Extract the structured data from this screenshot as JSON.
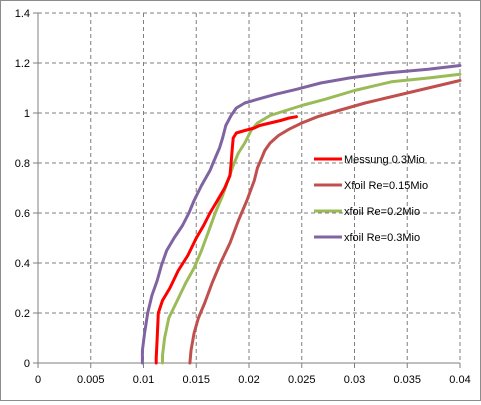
{
  "chart_data": {
    "type": "line",
    "title": "",
    "xlabel": "",
    "ylabel": "",
    "xlim": [
      0,
      0.04
    ],
    "ylim": [
      0,
      1.4
    ],
    "x_ticks": [
      0,
      0.005,
      0.01,
      0.015,
      0.02,
      0.025,
      0.03,
      0.035,
      0.04
    ],
    "x_tick_labels": [
      "0",
      "0.005",
      "0.01",
      "0.015",
      "0.02",
      "0.025",
      "0.03",
      "0.035",
      "0.04"
    ],
    "y_ticks": [
      0,
      0.2,
      0.4,
      0.6,
      0.8,
      1,
      1.2,
      1.4
    ],
    "y_tick_labels": [
      "0",
      "0.2",
      "0.4",
      "0.6",
      "0.8",
      "1",
      "1.2",
      "1.4"
    ],
    "grid": "dashed",
    "legend_position": "right",
    "series": [
      {
        "name": "Messung 0.3Mio",
        "color": "#ff0000",
        "points": [
          [
            0.0112,
            0
          ],
          [
            0.0112,
            0.02
          ],
          [
            0.0113,
            0.1
          ],
          [
            0.0114,
            0.2
          ],
          [
            0.0118,
            0.25
          ],
          [
            0.0125,
            0.3
          ],
          [
            0.0133,
            0.37
          ],
          [
            0.0142,
            0.43
          ],
          [
            0.015,
            0.5
          ],
          [
            0.0157,
            0.55
          ],
          [
            0.0163,
            0.6
          ],
          [
            0.017,
            0.65
          ],
          [
            0.0177,
            0.7
          ],
          [
            0.0182,
            0.75
          ],
          [
            0.0183,
            0.8
          ],
          [
            0.0184,
            0.85
          ],
          [
            0.0185,
            0.9
          ],
          [
            0.0188,
            0.92
          ],
          [
            0.0196,
            0.93
          ],
          [
            0.0205,
            0.94
          ],
          [
            0.021,
            0.95
          ],
          [
            0.022,
            0.96
          ],
          [
            0.023,
            0.97
          ],
          [
            0.0238,
            0.98
          ],
          [
            0.0245,
            0.985
          ]
        ]
      },
      {
        "name": "Xfoil Re=0.15Mio",
        "color": "#c0504d",
        "points": [
          [
            0.0144,
            0
          ],
          [
            0.0145,
            0.05
          ],
          [
            0.0148,
            0.12
          ],
          [
            0.0152,
            0.18
          ],
          [
            0.0158,
            0.24
          ],
          [
            0.0165,
            0.32
          ],
          [
            0.0173,
            0.4
          ],
          [
            0.0182,
            0.48
          ],
          [
            0.019,
            0.57
          ],
          [
            0.0198,
            0.65
          ],
          [
            0.0205,
            0.73
          ],
          [
            0.0208,
            0.78
          ],
          [
            0.0212,
            0.82
          ],
          [
            0.0215,
            0.85
          ],
          [
            0.022,
            0.88
          ],
          [
            0.0228,
            0.91
          ],
          [
            0.0238,
            0.935
          ],
          [
            0.025,
            0.96
          ],
          [
            0.0265,
            0.985
          ],
          [
            0.0285,
            1.01
          ],
          [
            0.031,
            1.04
          ],
          [
            0.034,
            1.07
          ],
          [
            0.037,
            1.1
          ],
          [
            0.04,
            1.13
          ]
        ]
      },
      {
        "name": "xfoil Re=0.2Mio",
        "color": "#9bbb59",
        "points": [
          [
            0.0118,
            0
          ],
          [
            0.0118,
            0.03
          ],
          [
            0.012,
            0.1
          ],
          [
            0.0124,
            0.18
          ],
          [
            0.0132,
            0.25
          ],
          [
            0.014,
            0.32
          ],
          [
            0.0148,
            0.38
          ],
          [
            0.0155,
            0.45
          ],
          [
            0.0162,
            0.53
          ],
          [
            0.0168,
            0.6
          ],
          [
            0.0175,
            0.67
          ],
          [
            0.018,
            0.73
          ],
          [
            0.0185,
            0.79
          ],
          [
            0.019,
            0.84
          ],
          [
            0.0196,
            0.88
          ],
          [
            0.0202,
            0.93
          ],
          [
            0.0208,
            0.96
          ],
          [
            0.022,
            0.99
          ],
          [
            0.0235,
            1.01
          ],
          [
            0.025,
            1.03
          ],
          [
            0.0272,
            1.055
          ],
          [
            0.03,
            1.09
          ],
          [
            0.0335,
            1.125
          ],
          [
            0.037,
            1.14
          ],
          [
            0.04,
            1.155
          ]
        ]
      },
      {
        "name": "xfoil Re=0.3Mio",
        "color": "#8064a2",
        "points": [
          [
            0.0099,
            0
          ],
          [
            0.0099,
            0.05
          ],
          [
            0.0101,
            0.12
          ],
          [
            0.0104,
            0.2
          ],
          [
            0.0108,
            0.27
          ],
          [
            0.0113,
            0.33
          ],
          [
            0.0117,
            0.39
          ],
          [
            0.0122,
            0.45
          ],
          [
            0.0129,
            0.5
          ],
          [
            0.0137,
            0.55
          ],
          [
            0.0143,
            0.6
          ],
          [
            0.0148,
            0.65
          ],
          [
            0.0155,
            0.71
          ],
          [
            0.0163,
            0.77
          ],
          [
            0.0168,
            0.82
          ],
          [
            0.0172,
            0.86
          ],
          [
            0.0175,
            0.9
          ],
          [
            0.0178,
            0.95
          ],
          [
            0.0183,
            0.99
          ],
          [
            0.0188,
            1.02
          ],
          [
            0.0196,
            1.04
          ],
          [
            0.0208,
            1.055
          ],
          [
            0.0225,
            1.075
          ],
          [
            0.0245,
            1.095
          ],
          [
            0.0268,
            1.12
          ],
          [
            0.0295,
            1.14
          ],
          [
            0.033,
            1.16
          ],
          [
            0.037,
            1.175
          ],
          [
            0.04,
            1.19
          ]
        ]
      }
    ]
  }
}
